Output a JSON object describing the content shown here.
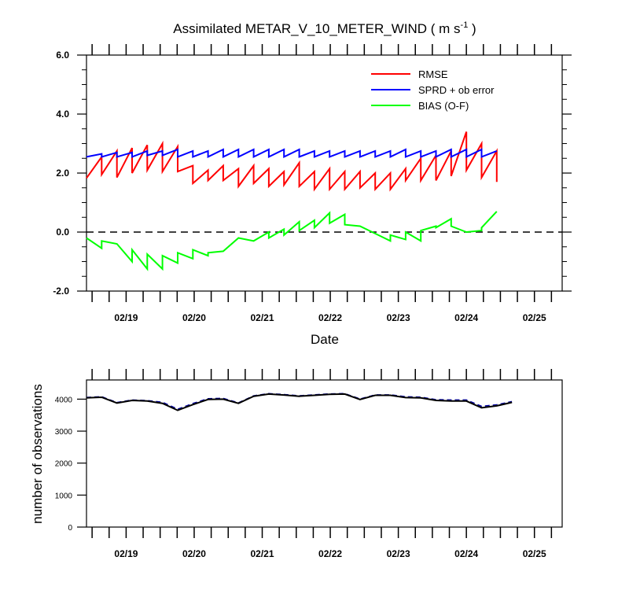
{
  "chart_data": [
    {
      "type": "line",
      "title": "Assimilated METAR_V_10_METER_WIND ( m s-1 )",
      "title_main": "Assimilated METAR_V_10_METER_WIND ( m s",
      "title_exp": "-1",
      "title_close": " )",
      "xlabel": "Date",
      "ylabel": "",
      "ylim": [
        -2.0,
        6.0
      ],
      "yticks": [
        "-2.0",
        "0.0",
        "2.0",
        "4.0",
        "6.0"
      ],
      "xlim": [
        0,
        72
      ],
      "x_ticklabels": [
        "02/19",
        "02/20",
        "02/21",
        "02/22",
        "02/23",
        "02/24",
        "02/25"
      ],
      "legend_placement": "top-right",
      "reference_line": {
        "y": 0.0,
        "style": "dashed"
      },
      "series": [
        {
          "name": "RMSE",
          "color": "#ff0000",
          "points": [
            [
              0,
              1.83
            ],
            [
              2.3,
              2.55
            ],
            [
              2.3,
              1.95
            ],
            [
              4.6,
              2.75
            ],
            [
              4.6,
              1.85
            ],
            [
              6.9,
              2.85
            ],
            [
              6.9,
              2.0
            ],
            [
              9.2,
              2.95
            ],
            [
              9.2,
              2.1
            ],
            [
              11.5,
              3.0
            ],
            [
              11.5,
              2.05
            ],
            [
              13.8,
              2.9
            ],
            [
              13.8,
              2.05
            ],
            [
              16.1,
              2.25
            ],
            [
              16.1,
              1.65
            ],
            [
              18.4,
              2.1
            ],
            [
              18.4,
              1.75
            ],
            [
              20.7,
              2.25
            ],
            [
              20.7,
              1.75
            ],
            [
              23,
              2.15
            ],
            [
              23,
              1.55
            ],
            [
              25.3,
              2.25
            ],
            [
              25.3,
              1.65
            ],
            [
              27.6,
              2.15
            ],
            [
              27.6,
              1.55
            ],
            [
              29.9,
              2.05
            ],
            [
              29.9,
              1.6
            ],
            [
              32.2,
              2.35
            ],
            [
              32.2,
              1.55
            ],
            [
              34.5,
              2.05
            ],
            [
              34.5,
              1.45
            ],
            [
              36.8,
              2.15
            ],
            [
              36.8,
              1.45
            ],
            [
              39.1,
              2.05
            ],
            [
              39.1,
              1.45
            ],
            [
              41.4,
              2.05
            ],
            [
              41.4,
              1.5
            ],
            [
              43.7,
              2.0
            ],
            [
              43.7,
              1.45
            ],
            [
              46,
              2.0
            ],
            [
              46,
              1.45
            ],
            [
              48.3,
              2.15
            ],
            [
              48.3,
              1.75
            ],
            [
              50.6,
              2.5
            ],
            [
              50.6,
              1.75
            ],
            [
              52.9,
              2.6
            ],
            [
              52.9,
              1.75
            ],
            [
              55.2,
              2.75
            ],
            [
              55.2,
              1.9
            ],
            [
              57.5,
              3.4
            ],
            [
              57.5,
              2.1
            ],
            [
              59.8,
              3.0
            ],
            [
              59.8,
              1.85
            ],
            [
              62.1,
              2.75
            ],
            [
              62.1,
              1.7
            ]
          ]
        },
        {
          "name": "SPRD + ob error",
          "color": "#0000ff",
          "points": [
            [
              0,
              2.55
            ],
            [
              2.3,
              2.65
            ],
            [
              2.3,
              2.55
            ],
            [
              4.6,
              2.7
            ],
            [
              4.6,
              2.55
            ],
            [
              6.9,
              2.7
            ],
            [
              6.9,
              2.55
            ],
            [
              9.2,
              2.75
            ],
            [
              9.2,
              2.6
            ],
            [
              11.5,
              2.75
            ],
            [
              11.5,
              2.6
            ],
            [
              13.8,
              2.8
            ],
            [
              13.8,
              2.55
            ],
            [
              16.1,
              2.75
            ],
            [
              16.1,
              2.55
            ],
            [
              18.4,
              2.75
            ],
            [
              18.4,
              2.55
            ],
            [
              20.7,
              2.8
            ],
            [
              20.7,
              2.55
            ],
            [
              23,
              2.8
            ],
            [
              23,
              2.55
            ],
            [
              25.3,
              2.8
            ],
            [
              25.3,
              2.55
            ],
            [
              27.6,
              2.8
            ],
            [
              27.6,
              2.55
            ],
            [
              29.9,
              2.8
            ],
            [
              29.9,
              2.55
            ],
            [
              32.2,
              2.8
            ],
            [
              32.2,
              2.55
            ],
            [
              34.5,
              2.75
            ],
            [
              34.5,
              2.55
            ],
            [
              36.8,
              2.75
            ],
            [
              36.8,
              2.55
            ],
            [
              39.1,
              2.75
            ],
            [
              39.1,
              2.55
            ],
            [
              41.4,
              2.75
            ],
            [
              41.4,
              2.55
            ],
            [
              43.7,
              2.75
            ],
            [
              43.7,
              2.55
            ],
            [
              46,
              2.75
            ],
            [
              46,
              2.55
            ],
            [
              48.3,
              2.8
            ],
            [
              48.3,
              2.55
            ],
            [
              50.6,
              2.75
            ],
            [
              50.6,
              2.55
            ],
            [
              52.9,
              2.75
            ],
            [
              52.9,
              2.55
            ],
            [
              55.2,
              2.8
            ],
            [
              55.2,
              2.55
            ],
            [
              57.5,
              2.8
            ],
            [
              57.5,
              2.55
            ],
            [
              59.8,
              2.8
            ],
            [
              59.8,
              2.55
            ],
            [
              62.1,
              2.75
            ]
          ]
        },
        {
          "name": "BIAS (O-F)",
          "color": "#00ff00",
          "points": [
            [
              0,
              -0.2
            ],
            [
              2.3,
              -0.55
            ],
            [
              2.3,
              -0.3
            ],
            [
              4.6,
              -0.4
            ],
            [
              6.9,
              -1.0
            ],
            [
              6.9,
              -0.6
            ],
            [
              9.2,
              -1.25
            ],
            [
              9.2,
              -0.75
            ],
            [
              11.5,
              -1.25
            ],
            [
              11.5,
              -0.8
            ],
            [
              13.8,
              -1.05
            ],
            [
              13.8,
              -0.7
            ],
            [
              16.1,
              -0.9
            ],
            [
              16.1,
              -0.6
            ],
            [
              18.4,
              -0.8
            ],
            [
              18.4,
              -0.7
            ],
            [
              20.7,
              -0.65
            ],
            [
              23,
              -0.2
            ],
            [
              25.3,
              -0.3
            ],
            [
              27.6,
              0.0
            ],
            [
              27.6,
              -0.2
            ],
            [
              29.9,
              0.1
            ],
            [
              29.9,
              -0.1
            ],
            [
              32.2,
              0.35
            ],
            [
              32.2,
              0.05
            ],
            [
              34.5,
              0.4
            ],
            [
              34.5,
              0.15
            ],
            [
              36.8,
              0.65
            ],
            [
              36.8,
              0.3
            ],
            [
              39.1,
              0.6
            ],
            [
              39.1,
              0.25
            ],
            [
              41.4,
              0.2
            ],
            [
              43.7,
              -0.05
            ],
            [
              46,
              -0.3
            ],
            [
              46,
              -0.1
            ],
            [
              48.3,
              -0.25
            ],
            [
              48.3,
              0.0
            ],
            [
              50.6,
              -0.3
            ],
            [
              50.6,
              0.05
            ],
            [
              52.9,
              0.2
            ],
            [
              52.9,
              0.15
            ],
            [
              55.2,
              0.45
            ],
            [
              55.2,
              0.2
            ],
            [
              57.5,
              0.0
            ],
            [
              59.8,
              0.05
            ],
            [
              59.8,
              0.15
            ],
            [
              62.1,
              0.7
            ]
          ]
        }
      ]
    },
    {
      "type": "line",
      "title": "",
      "xlabel": "",
      "ylabel": "number of observations",
      "ylim": [
        0,
        4600
      ],
      "yticks": [
        "0",
        "1000",
        "2000",
        "3000",
        "4000"
      ],
      "xlim": [
        0,
        72
      ],
      "x_ticklabels": [
        "02/19",
        "02/20",
        "02/21",
        "02/22",
        "02/23",
        "02/24",
        "02/25"
      ],
      "series": [
        {
          "style": "solid",
          "color": "#000000",
          "points": [
            [
              0,
              4040
            ],
            [
              2.3,
              4060
            ],
            [
              4.6,
              3880
            ],
            [
              6.9,
              3960
            ],
            [
              9.2,
              3940
            ],
            [
              11.5,
              3870
            ],
            [
              13.8,
              3650
            ],
            [
              16.1,
              3830
            ],
            [
              18.4,
              3990
            ],
            [
              20.7,
              4000
            ],
            [
              23,
              3870
            ],
            [
              25.3,
              4090
            ],
            [
              27.6,
              4160
            ],
            [
              29.9,
              4130
            ],
            [
              32.2,
              4090
            ],
            [
              34.5,
              4120
            ],
            [
              36.8,
              4150
            ],
            [
              39.1,
              4160
            ],
            [
              41.4,
              3990
            ],
            [
              43.7,
              4120
            ],
            [
              46,
              4120
            ],
            [
              48.3,
              4050
            ],
            [
              50.6,
              4040
            ],
            [
              52.9,
              3960
            ],
            [
              55.2,
              3940
            ],
            [
              57.5,
              3940
            ],
            [
              59.8,
              3730
            ],
            [
              62.1,
              3790
            ],
            [
              64.4,
              3900
            ]
          ]
        },
        {
          "style": "dashed",
          "color": "#0000a0",
          "points": [
            [
              0,
              4050
            ],
            [
              2.3,
              4070
            ],
            [
              4.6,
              3890
            ],
            [
              6.9,
              3970
            ],
            [
              9.2,
              3950
            ],
            [
              11.5,
              3900
            ],
            [
              13.8,
              3680
            ],
            [
              16.1,
              3860
            ],
            [
              18.4,
              4010
            ],
            [
              20.7,
              4020
            ],
            [
              23,
              3880
            ],
            [
              25.3,
              4100
            ],
            [
              27.6,
              4170
            ],
            [
              29.9,
              4140
            ],
            [
              32.2,
              4100
            ],
            [
              34.5,
              4130
            ],
            [
              36.8,
              4160
            ],
            [
              39.1,
              4170
            ],
            [
              41.4,
              4000
            ],
            [
              43.7,
              4130
            ],
            [
              46,
              4130
            ],
            [
              48.3,
              4070
            ],
            [
              50.6,
              4060
            ],
            [
              52.9,
              3980
            ],
            [
              55.2,
              3970
            ],
            [
              57.5,
              3970
            ],
            [
              59.8,
              3770
            ],
            [
              62.1,
              3820
            ],
            [
              64.4,
              3920
            ]
          ]
        }
      ]
    }
  ]
}
